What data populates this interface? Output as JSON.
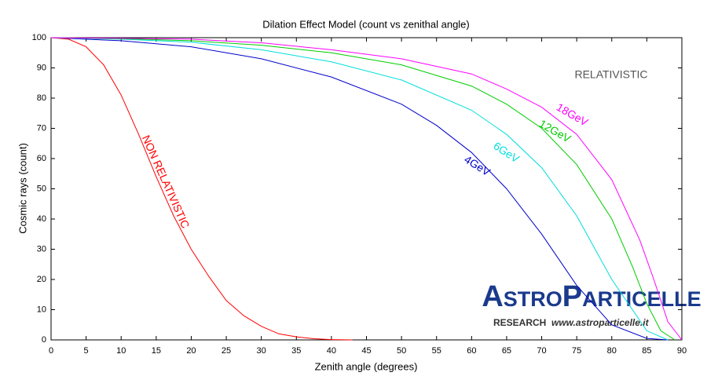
{
  "chart_data": {
    "type": "line",
    "title": "Dilation Effect Model (count vs zenithal angle)",
    "x_label": "Zenith angle (degrees)",
    "y_label": "Cosmic rays (count)",
    "xlim": [
      0,
      90
    ],
    "ylim": [
      0,
      100
    ],
    "xticks": [
      0,
      5,
      10,
      15,
      20,
      25,
      30,
      35,
      40,
      45,
      50,
      55,
      60,
      65,
      70,
      75,
      80,
      85,
      90
    ],
    "yticks": [
      0,
      10,
      20,
      30,
      40,
      50,
      60,
      70,
      80,
      90,
      100
    ],
    "series": [
      {
        "name": "NON RELATIVISTIC",
        "color": "#ff0000",
        "x": [
          0,
          2.5,
          5,
          7.5,
          10,
          12.5,
          15,
          17.5,
          20,
          22.5,
          25,
          27.5,
          30,
          32.5,
          35,
          37.5,
          40,
          43
        ],
        "values": [
          100,
          99.5,
          97,
          91,
          81,
          68,
          54,
          41,
          30,
          21,
          13,
          8,
          4.5,
          2,
          1,
          0.4,
          0.1,
          0
        ]
      },
      {
        "name": "4GeV",
        "color": "#0000cc",
        "x": [
          0,
          10,
          20,
          30,
          40,
          50,
          55,
          60,
          65,
          70,
          75,
          80,
          85,
          88
        ],
        "values": [
          100,
          99,
          97,
          93,
          87,
          78,
          71,
          62,
          50,
          35,
          18,
          5,
          0.5,
          0
        ]
      },
      {
        "name": "6GeV",
        "color": "#00dddd",
        "x": [
          0,
          10,
          20,
          30,
          40,
          50,
          60,
          65,
          70,
          75,
          80,
          85,
          88
        ],
        "values": [
          100,
          99.5,
          98.5,
          96,
          92,
          86,
          76,
          68,
          57,
          41,
          20,
          3,
          0
        ]
      },
      {
        "name": "12GeV",
        "color": "#00cc00",
        "x": [
          0,
          10,
          20,
          30,
          40,
          50,
          60,
          65,
          70,
          75,
          80,
          83,
          85,
          87,
          89
        ],
        "values": [
          100,
          99.7,
          99,
          97.5,
          95,
          91,
          84,
          78,
          70,
          58,
          40,
          24,
          12,
          3,
          0
        ]
      },
      {
        "name": "18GeV",
        "color": "#ff00ff",
        "x": [
          0,
          10,
          20,
          30,
          40,
          50,
          60,
          65,
          70,
          75,
          80,
          84,
          86,
          88,
          90
        ],
        "values": [
          100,
          99.8,
          99.5,
          98.3,
          96,
          93,
          88,
          83,
          77,
          68,
          53,
          33,
          20,
          6,
          0
        ]
      }
    ],
    "annotations": [
      "RELATIVISTIC",
      "AstroParticelle",
      "RESEARCH",
      "www.astroparticelle.it"
    ]
  }
}
